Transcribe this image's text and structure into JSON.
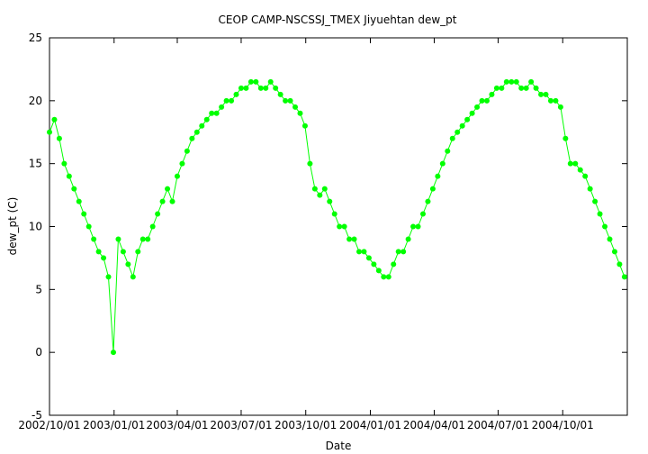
{
  "chart_data": {
    "type": "scatter",
    "title": "CEOP CAMP-NSCSSJ_TMEX Jiyuehtan  dew_pt",
    "xlabel": "Date",
    "ylabel": "dew_pt (C)",
    "xlim": [
      "2002-10-01",
      "2005-01-01"
    ],
    "ylim": [
      -5,
      25
    ],
    "x_ticks": [
      {
        "value": "2002-10-01",
        "label": "2002/10/01"
      },
      {
        "value": "2003-01-01",
        "label": "2003/01/01"
      },
      {
        "value": "2003-04-01",
        "label": "2003/04/01"
      },
      {
        "value": "2003-07-01",
        "label": "2003/07/01"
      },
      {
        "value": "2003-10-01",
        "label": "2003/10/01"
      },
      {
        "value": "2004-01-01",
        "label": "2004/01/01"
      },
      {
        "value": "2004-04-01",
        "label": "2004/04/01"
      },
      {
        "value": "2004-07-01",
        "label": "2004/07/01"
      },
      {
        "value": "2004-10-01",
        "label": "2004/10/01"
      }
    ],
    "y_ticks": [
      -5,
      0,
      5,
      10,
      15,
      20,
      25
    ],
    "grid": false,
    "series": [
      {
        "color": "#00ff00",
        "marker": "circle",
        "x": [
          "2002-10-01",
          "2002-10-08",
          "2002-10-15",
          "2002-10-22",
          "2002-10-29",
          "2002-11-05",
          "2002-11-12",
          "2002-11-19",
          "2002-11-26",
          "2002-12-03",
          "2002-12-10",
          "2002-12-17",
          "2002-12-24",
          "2002-12-31",
          "2003-01-07",
          "2003-01-14",
          "2003-01-21",
          "2003-01-28",
          "2003-02-04",
          "2003-02-11",
          "2003-02-18",
          "2003-02-25",
          "2003-03-04",
          "2003-03-11",
          "2003-03-18",
          "2003-03-25",
          "2003-04-01",
          "2003-04-08",
          "2003-04-15",
          "2003-04-22",
          "2003-04-29",
          "2003-05-06",
          "2003-05-13",
          "2003-05-20",
          "2003-05-27",
          "2003-06-03",
          "2003-06-10",
          "2003-06-17",
          "2003-06-24",
          "2003-07-01",
          "2003-07-08",
          "2003-07-15",
          "2003-07-22",
          "2003-07-29",
          "2003-08-05",
          "2003-08-12",
          "2003-08-19",
          "2003-08-26",
          "2003-09-02",
          "2003-09-09",
          "2003-09-16",
          "2003-09-23",
          "2003-09-30",
          "2003-10-07",
          "2003-10-14",
          "2003-10-21",
          "2003-10-28",
          "2003-11-04",
          "2003-11-11",
          "2003-11-18",
          "2003-11-25",
          "2003-12-02",
          "2003-12-09",
          "2003-12-16",
          "2003-12-23",
          "2003-12-30",
          "2004-01-06",
          "2004-01-13",
          "2004-01-20",
          "2004-01-27",
          "2004-02-03",
          "2004-02-10",
          "2004-02-17",
          "2004-02-24",
          "2004-03-02",
          "2004-03-09",
          "2004-03-16",
          "2004-03-23",
          "2004-03-30",
          "2004-04-06",
          "2004-04-13",
          "2004-04-20",
          "2004-04-27",
          "2004-05-04",
          "2004-05-11",
          "2004-05-18",
          "2004-05-25",
          "2004-06-01",
          "2004-06-08",
          "2004-06-15",
          "2004-06-22",
          "2004-06-29",
          "2004-07-06",
          "2004-07-13",
          "2004-07-20",
          "2004-07-27",
          "2004-08-03",
          "2004-08-10",
          "2004-08-17",
          "2004-08-24",
          "2004-08-31",
          "2004-09-07",
          "2004-09-14",
          "2004-09-21",
          "2004-09-28",
          "2004-10-05",
          "2004-10-12",
          "2004-10-19",
          "2004-10-26",
          "2004-11-02",
          "2004-11-09",
          "2004-11-16",
          "2004-11-23",
          "2004-11-30",
          "2004-12-07",
          "2004-12-14",
          "2004-12-21",
          "2004-12-28"
        ],
        "y": [
          17.5,
          18.5,
          17,
          15,
          14,
          13,
          12,
          11,
          10,
          9,
          8,
          7.5,
          6,
          0,
          9,
          8,
          7,
          6,
          8,
          9,
          9,
          10,
          11,
          12,
          13,
          12,
          14,
          15,
          16,
          17,
          17.5,
          18,
          18.5,
          19,
          19,
          19.5,
          20,
          20,
          20.5,
          21,
          21,
          21.5,
          21.5,
          21,
          21,
          21.5,
          21,
          20.5,
          20,
          20,
          19.5,
          19,
          18,
          15,
          13,
          12.5,
          13,
          12,
          11,
          10,
          10,
          9,
          9,
          8,
          8,
          7.5,
          7,
          6.5,
          6,
          6,
          7,
          8,
          8,
          9,
          10,
          10,
          11,
          12,
          13,
          14,
          15,
          16,
          17,
          17.5,
          18,
          18.5,
          19,
          19.5,
          20,
          20,
          20.5,
          21,
          21,
          21.5,
          21.5,
          21.5,
          21,
          21,
          21.5,
          21,
          20.5,
          20.5,
          20,
          20,
          19.5,
          17,
          15,
          15,
          14.5,
          14,
          13,
          12,
          11,
          10,
          9,
          8,
          7,
          6
        ]
      }
    ],
    "annotations": []
  }
}
